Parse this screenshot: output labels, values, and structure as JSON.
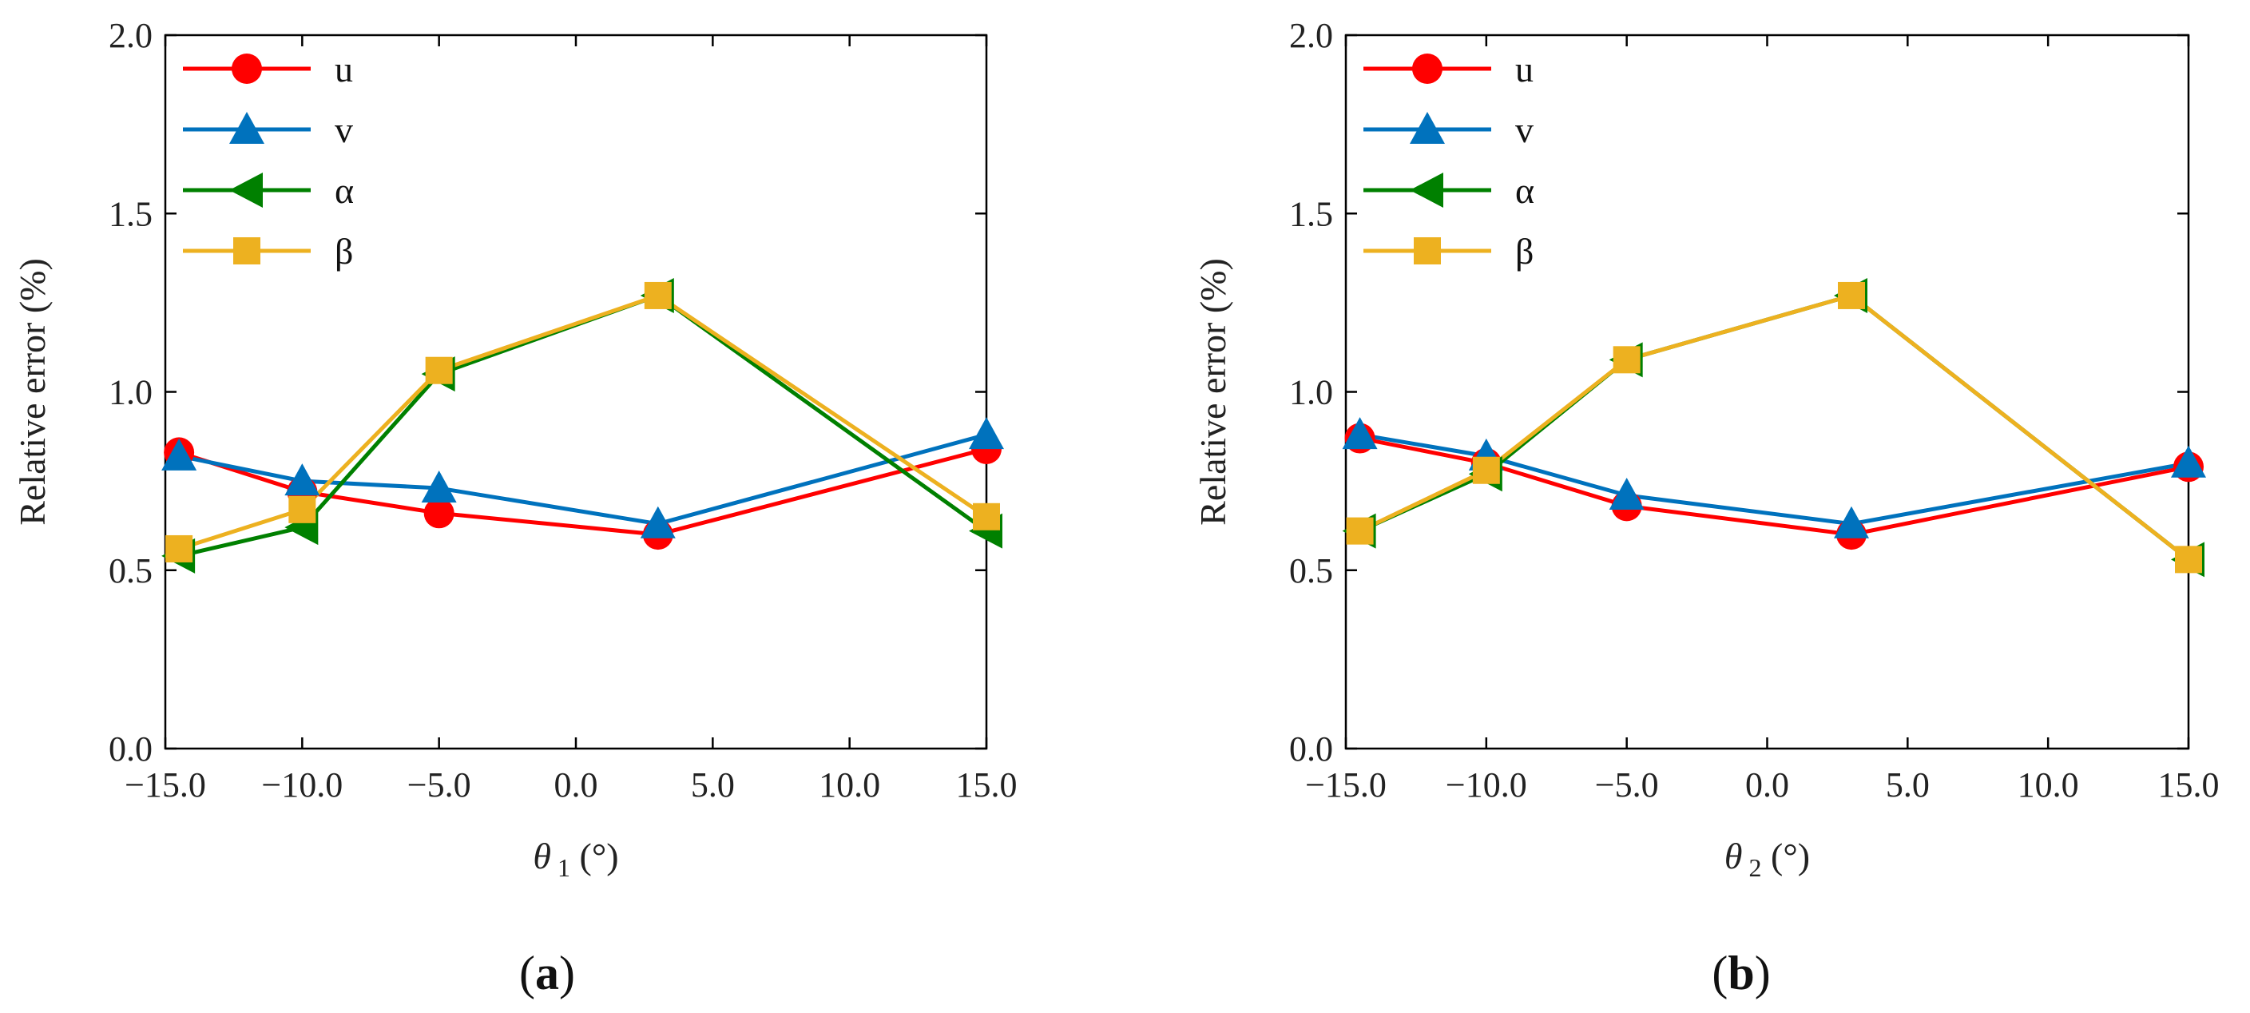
{
  "chart_data": [
    {
      "type": "line",
      "panel": "a",
      "caption_letter": "a",
      "x": [
        -14.5,
        -10.0,
        -5.0,
        3.0,
        15.0
      ],
      "xlim": [
        -15.0,
        15.0
      ],
      "ylim": [
        0.0,
        2.0
      ],
      "xticks": [
        -15.0,
        -10.0,
        -5.0,
        0.0,
        5.0,
        10.0,
        15.0
      ],
      "yticks": [
        0.0,
        0.5,
        1.0,
        1.5,
        2.0
      ],
      "xtick_labels": [
        "−15.0",
        "−10.0",
        "−5.0",
        "0.0",
        "5.0",
        "10.0",
        "15.0"
      ],
      "ytick_labels": [
        "0.0",
        "0.5",
        "1.0",
        "1.5",
        "2.0"
      ],
      "ylabel": "Relative error (%)",
      "xlabel_symbol": "θ",
      "xlabel_subscript": "1",
      "xlabel_unit": "(°)",
      "legend_position": "top-left",
      "series": [
        {
          "name": "u",
          "marker": "circle",
          "color": "#ff0000",
          "values": [
            0.83,
            0.72,
            0.66,
            0.6,
            0.84
          ]
        },
        {
          "name": "v",
          "marker": "triangle-up",
          "color": "#0072bd",
          "values": [
            0.82,
            0.75,
            0.73,
            0.63,
            0.88
          ]
        },
        {
          "name": "α",
          "marker": "triangle-left",
          "color": "#008000",
          "values": [
            0.54,
            0.62,
            1.05,
            1.27,
            0.61
          ]
        },
        {
          "name": "β",
          "marker": "square",
          "color": "#edb120",
          "values": [
            0.56,
            0.67,
            1.06,
            1.27,
            0.65
          ]
        }
      ]
    },
    {
      "type": "line",
      "panel": "b",
      "caption_letter": "b",
      "x": [
        -14.5,
        -10.0,
        -5.0,
        3.0,
        15.0
      ],
      "xlim": [
        -15.0,
        15.0
      ],
      "ylim": [
        0.0,
        2.0
      ],
      "xticks": [
        -15.0,
        -10.0,
        -5.0,
        0.0,
        5.0,
        10.0,
        15.0
      ],
      "yticks": [
        0.0,
        0.5,
        1.0,
        1.5,
        2.0
      ],
      "xtick_labels": [
        "−15.0",
        "−10.0",
        "−5.0",
        "0.0",
        "5.0",
        "10.0",
        "15.0"
      ],
      "ytick_labels": [
        "0.0",
        "0.5",
        "1.0",
        "1.5",
        "2.0"
      ],
      "ylabel": "Relative error (%)",
      "xlabel_symbol": "θ",
      "xlabel_subscript": "2",
      "xlabel_unit": "(°)",
      "legend_position": "top-left",
      "series": [
        {
          "name": "u",
          "marker": "circle",
          "color": "#ff0000",
          "values": [
            0.87,
            0.8,
            0.68,
            0.6,
            0.79
          ]
        },
        {
          "name": "v",
          "marker": "triangle-up",
          "color": "#0072bd",
          "values": [
            0.88,
            0.82,
            0.71,
            0.63,
            0.8
          ]
        },
        {
          "name": "α",
          "marker": "triangle-left",
          "color": "#008000",
          "values": [
            0.61,
            0.77,
            1.09,
            1.27,
            0.53
          ]
        },
        {
          "name": "β",
          "marker": "square",
          "color": "#edb120",
          "values": [
            0.61,
            0.78,
            1.09,
            1.27,
            0.53
          ]
        }
      ]
    }
  ]
}
